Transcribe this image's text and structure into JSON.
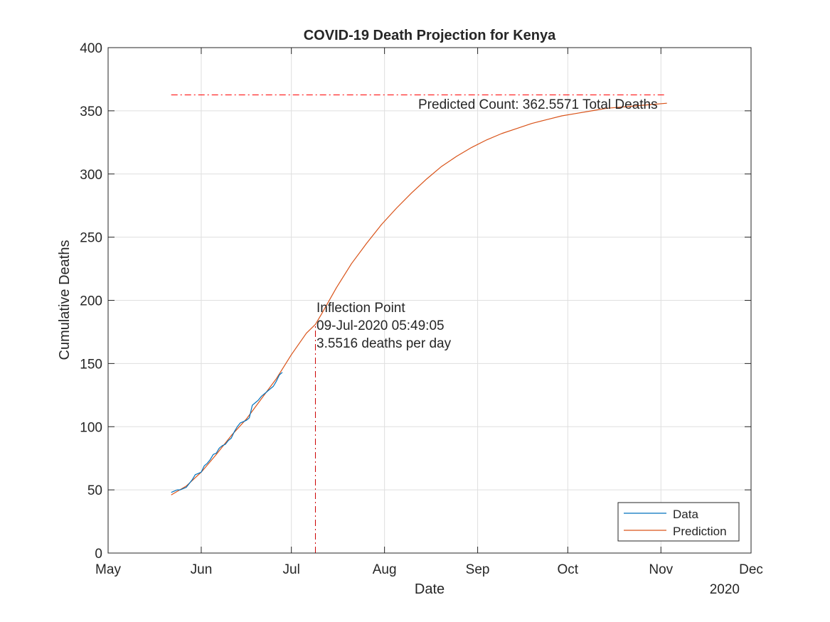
{
  "chart_data": {
    "type": "line",
    "title": "COVID-19 Death Projection for Kenya",
    "xlabel": "Date",
    "ylabel": "Cumulative Deaths",
    "year_label": "2020",
    "x_axis": {
      "type": "date",
      "xlim": [
        "2020-05-01",
        "2020-12-01"
      ],
      "ticks": [
        {
          "date": "2020-05-01",
          "label": "May"
        },
        {
          "date": "2020-06-01",
          "label": "Jun"
        },
        {
          "date": "2020-07-01",
          "label": "Jul"
        },
        {
          "date": "2020-08-01",
          "label": "Aug"
        },
        {
          "date": "2020-09-01",
          "label": "Sep"
        },
        {
          "date": "2020-10-01",
          "label": "Oct"
        },
        {
          "date": "2020-11-01",
          "label": "Nov"
        },
        {
          "date": "2020-12-01",
          "label": "Dec"
        }
      ]
    },
    "y_axis": {
      "ylim": [
        0,
        400
      ],
      "ticks": [
        0,
        50,
        100,
        150,
        200,
        250,
        300,
        350,
        400
      ]
    },
    "grid": true,
    "legend_position": "bottom-right",
    "series": [
      {
        "name": "Data",
        "color": "#0072BD",
        "style": "solid",
        "points": [
          {
            "x": "2020-05-22",
            "y": 48
          },
          {
            "x": "2020-05-23",
            "y": 49
          },
          {
            "x": "2020-05-24",
            "y": 50
          },
          {
            "x": "2020-05-25",
            "y": 50
          },
          {
            "x": "2020-05-26",
            "y": 51
          },
          {
            "x": "2020-05-27",
            "y": 52
          },
          {
            "x": "2020-05-28",
            "y": 55
          },
          {
            "x": "2020-05-29",
            "y": 58
          },
          {
            "x": "2020-05-30",
            "y": 62
          },
          {
            "x": "2020-05-31",
            "y": 63
          },
          {
            "x": "2020-06-01",
            "y": 64
          },
          {
            "x": "2020-06-02",
            "y": 69
          },
          {
            "x": "2020-06-03",
            "y": 71
          },
          {
            "x": "2020-06-04",
            "y": 74
          },
          {
            "x": "2020-06-05",
            "y": 78
          },
          {
            "x": "2020-06-06",
            "y": 79
          },
          {
            "x": "2020-06-07",
            "y": 83
          },
          {
            "x": "2020-06-08",
            "y": 85
          },
          {
            "x": "2020-06-09",
            "y": 86
          },
          {
            "x": "2020-06-10",
            "y": 89
          },
          {
            "x": "2020-06-11",
            "y": 91
          },
          {
            "x": "2020-06-12",
            "y": 96
          },
          {
            "x": "2020-06-13",
            "y": 100
          },
          {
            "x": "2020-06-14",
            "y": 103
          },
          {
            "x": "2020-06-15",
            "y": 104
          },
          {
            "x": "2020-06-16",
            "y": 105
          },
          {
            "x": "2020-06-17",
            "y": 107
          },
          {
            "x": "2020-06-18",
            "y": 117
          },
          {
            "x": "2020-06-19",
            "y": 119
          },
          {
            "x": "2020-06-20",
            "y": 121
          },
          {
            "x": "2020-06-21",
            "y": 124
          },
          {
            "x": "2020-06-22",
            "y": 126
          },
          {
            "x": "2020-06-23",
            "y": 128
          },
          {
            "x": "2020-06-24",
            "y": 130
          },
          {
            "x": "2020-06-25",
            "y": 132
          },
          {
            "x": "2020-06-26",
            "y": 136
          },
          {
            "x": "2020-06-27",
            "y": 141
          },
          {
            "x": "2020-06-28",
            "y": 143
          }
        ]
      },
      {
        "name": "Prediction",
        "color": "#D95319",
        "style": "solid",
        "points": [
          {
            "x": "2020-05-22",
            "y": 46
          },
          {
            "x": "2020-05-27",
            "y": 53
          },
          {
            "x": "2020-06-01",
            "y": 64
          },
          {
            "x": "2020-06-06",
            "y": 78
          },
          {
            "x": "2020-06-11",
            "y": 93
          },
          {
            "x": "2020-06-16",
            "y": 106
          },
          {
            "x": "2020-06-21",
            "y": 122
          },
          {
            "x": "2020-06-26",
            "y": 138
          },
          {
            "x": "2020-07-01",
            "y": 157
          },
          {
            "x": "2020-07-06",
            "y": 174
          },
          {
            "x": "2020-07-09",
            "y": 181
          },
          {
            "x": "2020-07-11",
            "y": 189
          },
          {
            "x": "2020-07-16",
            "y": 210
          },
          {
            "x": "2020-07-21",
            "y": 229
          },
          {
            "x": "2020-07-26",
            "y": 245
          },
          {
            "x": "2020-07-31",
            "y": 260
          },
          {
            "x": "2020-08-05",
            "y": 273
          },
          {
            "x": "2020-08-10",
            "y": 285
          },
          {
            "x": "2020-08-15",
            "y": 296
          },
          {
            "x": "2020-08-20",
            "y": 306
          },
          {
            "x": "2020-08-25",
            "y": 314
          },
          {
            "x": "2020-08-30",
            "y": 321
          },
          {
            "x": "2020-09-04",
            "y": 327
          },
          {
            "x": "2020-09-09",
            "y": 332
          },
          {
            "x": "2020-09-14",
            "y": 336
          },
          {
            "x": "2020-09-19",
            "y": 340
          },
          {
            "x": "2020-09-24",
            "y": 343
          },
          {
            "x": "2020-09-29",
            "y": 346
          },
          {
            "x": "2020-10-04",
            "y": 348
          },
          {
            "x": "2020-10-09",
            "y": 350
          },
          {
            "x": "2020-10-14",
            "y": 352
          },
          {
            "x": "2020-10-19",
            "y": 353
          },
          {
            "x": "2020-10-24",
            "y": 354
          },
          {
            "x": "2020-10-29",
            "y": 355
          },
          {
            "x": "2020-11-03",
            "y": 356
          }
        ]
      }
    ],
    "reference_lines": {
      "total_deaths": {
        "y": 362.5571,
        "x_from": "2020-05-22",
        "x_to": "2020-11-03",
        "color": "#FF0000",
        "style": "dashdot"
      },
      "inflection": {
        "x": "2020-07-09",
        "y_from": 0,
        "y_to": 181,
        "color": "#CC0000",
        "style": "dashdot"
      }
    },
    "annotations": {
      "predicted_count": "Predicted Count: 362.5571 Total Deaths",
      "inflection_lines": [
        "Inflection Point",
        "09-Jul-2020 05:49:05",
        "3.5516 deaths per day"
      ]
    }
  }
}
